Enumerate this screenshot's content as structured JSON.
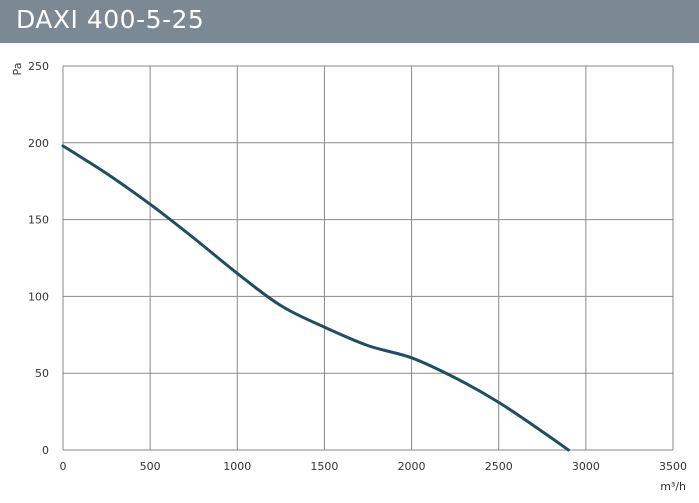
{
  "header": {
    "title": "DAXI 400-5-25"
  },
  "chart_data": {
    "type": "line",
    "title": "DAXI 400-5-25",
    "xlabel": "m³/h",
    "ylabel": "Pa",
    "xlim": [
      0,
      3500
    ],
    "ylim": [
      0,
      250
    ],
    "xticks": [
      0,
      500,
      1000,
      1500,
      2000,
      2500,
      3000,
      3500
    ],
    "yticks": [
      0,
      50,
      100,
      150,
      200,
      250
    ],
    "xtick_labels": [
      "0",
      "500",
      "1000",
      "1500",
      "2000",
      "2500",
      "3000",
      "3500"
    ],
    "ytick_labels": [
      "0",
      "50",
      "100",
      "150",
      "200",
      "250"
    ],
    "grid": true,
    "series": [
      {
        "color": "#1f4e62",
        "x": [
          0,
          250,
          500,
          750,
          1000,
          1250,
          1500,
          1750,
          2000,
          2250,
          2500,
          2750,
          2900
        ],
        "y": [
          198,
          180,
          160,
          138,
          115,
          94,
          80,
          68,
          60,
          47,
          31,
          12,
          0
        ]
      }
    ]
  },
  "colors": {
    "title_bar": "#7d8895",
    "title_text": "#ffffff",
    "grid": "#8a8a8a",
    "line": "#1f4e62"
  }
}
